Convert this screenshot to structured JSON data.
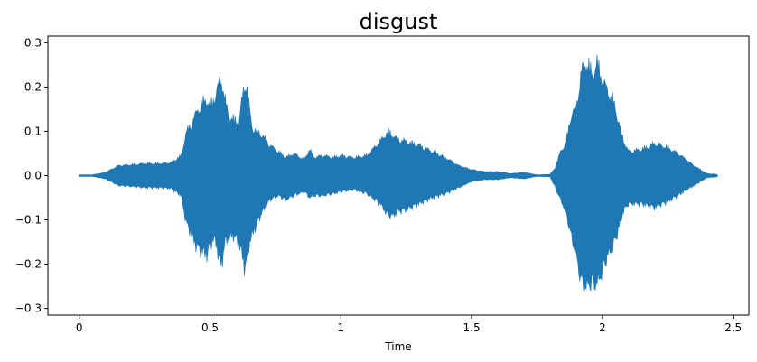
{
  "chart_data": {
    "type": "area",
    "title": "disgust",
    "xlabel": "Time",
    "ylabel": "",
    "xlim": [
      -0.12,
      2.56
    ],
    "ylim": [
      -0.315,
      0.315
    ],
    "xticks": [
      0,
      0.5,
      1,
      1.5,
      2,
      2.5
    ],
    "xtick_labels": [
      "0",
      "0.5",
      "1",
      "1.5",
      "2",
      "2.5"
    ],
    "yticks": [
      -0.3,
      -0.2,
      -0.1,
      0.0,
      0.1,
      0.2,
      0.3
    ],
    "ytick_labels": [
      "−0.3",
      "−0.2",
      "−0.1",
      "0.0",
      "0.1",
      "0.2",
      "0.3"
    ],
    "grid": false,
    "color": "#1f77b4",
    "series": [
      {
        "x": [
          0.0,
          0.05,
          0.1,
          0.15,
          0.2,
          0.25,
          0.3,
          0.35,
          0.39,
          0.4,
          0.41,
          0.43,
          0.45,
          0.47,
          0.49,
          0.5,
          0.52,
          0.54,
          0.55,
          0.56,
          0.57,
          0.59,
          0.61,
          0.62,
          0.63,
          0.64,
          0.65,
          0.66,
          0.68,
          0.7,
          0.73,
          0.76,
          0.79,
          0.82,
          0.86,
          0.88,
          0.9,
          0.93,
          0.97,
          1.0,
          1.05,
          1.1,
          1.15,
          1.18,
          1.2,
          1.22,
          1.25,
          1.3,
          1.35,
          1.4,
          1.45,
          1.5,
          1.55,
          1.6,
          1.65,
          1.7,
          1.75,
          1.8,
          1.82,
          1.84,
          1.86,
          1.88,
          1.9,
          1.92,
          1.94,
          1.95,
          1.96,
          1.98,
          2.0,
          2.02,
          2.04,
          2.06,
          2.08,
          2.1,
          2.15,
          2.2,
          2.25,
          2.3,
          2.35,
          2.4,
          2.44
        ],
        "upper": [
          0.002,
          0.002,
          0.008,
          0.025,
          0.027,
          0.03,
          0.03,
          0.032,
          0.05,
          0.08,
          0.11,
          0.13,
          0.16,
          0.18,
          0.19,
          0.17,
          0.2,
          0.24,
          0.22,
          0.18,
          0.15,
          0.14,
          0.13,
          0.18,
          0.22,
          0.23,
          0.17,
          0.12,
          0.11,
          0.1,
          0.075,
          0.06,
          0.045,
          0.055,
          0.04,
          0.065,
          0.045,
          0.05,
          0.045,
          0.05,
          0.045,
          0.05,
          0.085,
          0.11,
          0.1,
          0.09,
          0.085,
          0.075,
          0.06,
          0.045,
          0.025,
          0.015,
          0.01,
          0.01,
          0.005,
          0.008,
          0.002,
          0.003,
          0.02,
          0.06,
          0.08,
          0.15,
          0.17,
          0.26,
          0.285,
          0.27,
          0.25,
          0.28,
          0.24,
          0.21,
          0.19,
          0.14,
          0.09,
          0.06,
          0.065,
          0.08,
          0.07,
          0.05,
          0.025,
          0.005,
          0.003
        ],
        "lower": [
          -0.002,
          -0.002,
          -0.008,
          -0.025,
          -0.027,
          -0.03,
          -0.03,
          -0.032,
          -0.05,
          -0.09,
          -0.12,
          -0.15,
          -0.18,
          -0.19,
          -0.2,
          -0.17,
          -0.16,
          -0.23,
          -0.2,
          -0.16,
          -0.16,
          -0.15,
          -0.17,
          -0.19,
          -0.23,
          -0.22,
          -0.17,
          -0.15,
          -0.12,
          -0.09,
          -0.06,
          -0.05,
          -0.06,
          -0.05,
          -0.04,
          -0.055,
          -0.05,
          -0.05,
          -0.045,
          -0.04,
          -0.035,
          -0.045,
          -0.07,
          -0.1,
          -0.1,
          -0.09,
          -0.085,
          -0.07,
          -0.055,
          -0.045,
          -0.03,
          -0.015,
          -0.01,
          -0.01,
          -0.005,
          -0.008,
          -0.002,
          -0.003,
          -0.03,
          -0.06,
          -0.09,
          -0.15,
          -0.2,
          -0.27,
          -0.28,
          -0.27,
          -0.27,
          -0.27,
          -0.24,
          -0.2,
          -0.18,
          -0.14,
          -0.09,
          -0.07,
          -0.07,
          -0.08,
          -0.065,
          -0.045,
          -0.025,
          -0.005,
          -0.003
        ]
      }
    ]
  }
}
